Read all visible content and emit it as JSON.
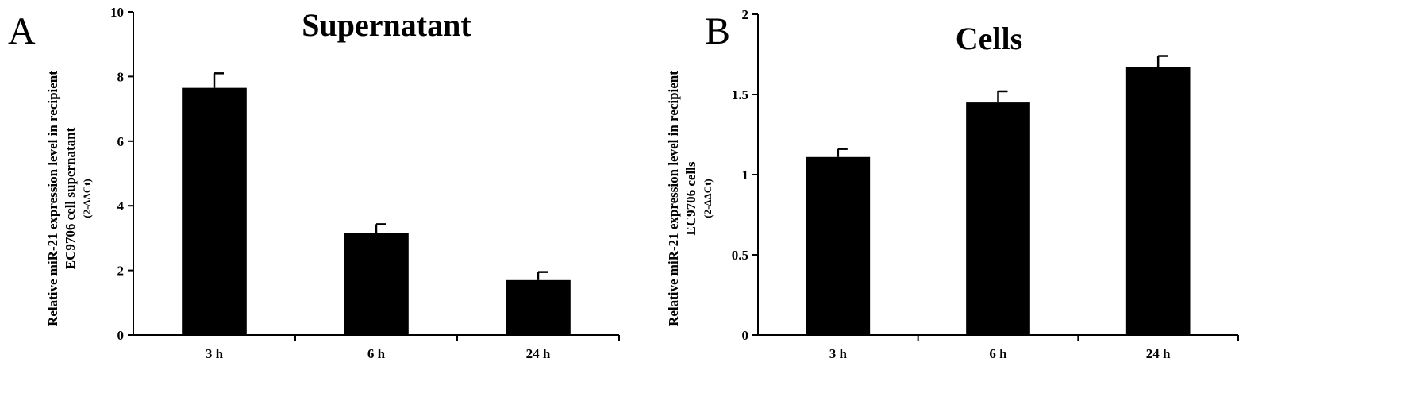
{
  "chart_data": [
    {
      "panel": "A",
      "type": "bar",
      "title": "Supernatant",
      "categories": [
        "3 h",
        "6 h",
        "24 h"
      ],
      "values": [
        7.65,
        3.15,
        1.7
      ],
      "errors": [
        0.45,
        0.28,
        0.25
      ],
      "ylim": [
        0,
        10
      ],
      "yticks": [
        "0",
        "2",
        "4",
        "6",
        "8",
        "10"
      ],
      "ylabel_lines": [
        "Relative miR-21 expression level in recipient",
        "EC9706 cell supernatant",
        "(2-ΔΔCt)"
      ],
      "bar_color": "#000000",
      "grid": false
    },
    {
      "panel": "B",
      "type": "bar",
      "title": "Cells",
      "categories": [
        "3 h",
        "6 h",
        "24 h"
      ],
      "values": [
        1.11,
        1.45,
        1.67
      ],
      "errors": [
        0.05,
        0.07,
        0.07
      ],
      "ylim": [
        0,
        2
      ],
      "yticks": [
        "0",
        "0.5",
        "1",
        "1.5",
        "2"
      ],
      "ylabel_lines": [
        "Relative miR-21 expression level in recipient",
        "EC9706 cells",
        "(2-ΔΔCt)"
      ],
      "bar_color": "#000000",
      "grid": false
    }
  ]
}
